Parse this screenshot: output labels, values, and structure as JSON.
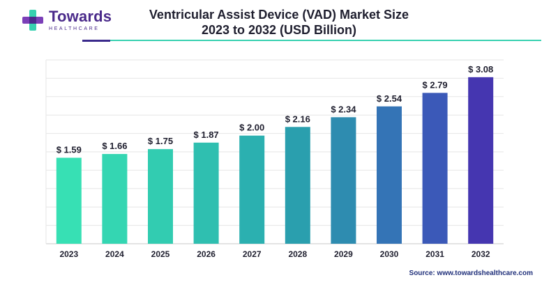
{
  "brand": {
    "name": "Towards",
    "tagline": "HEALTHCARE",
    "colors": {
      "purple": "#4a2a8c",
      "teal": "#37d1b0"
    }
  },
  "title_lines": [
    "Ventricular Assist Device (VAD) Market Size",
    "2023 to 2032 (USD Billion)"
  ],
  "source": "Source: www.towardshealthcare.com",
  "chart_data": {
    "type": "bar",
    "title": "Ventricular Assist Device (VAD) Market Size 2023 to 2032 (USD Billion)",
    "categories": [
      "2023",
      "2024",
      "2025",
      "2026",
      "2027",
      "2028",
      "2029",
      "2030",
      "2031",
      "2032"
    ],
    "values": [
      1.59,
      1.66,
      1.75,
      1.87,
      2.0,
      2.16,
      2.34,
      2.54,
      2.79,
      3.08
    ],
    "value_labels": [
      "$ 1.59",
      "$ 1.66",
      "$ 1.75",
      "$ 1.87",
      "$ 2.00",
      "$ 2.16",
      "$ 2.34",
      "$ 2.54",
      "$ 2.79",
      "$ 3.08"
    ],
    "unit": "USD Billion",
    "ylim": [
      0,
      3.4
    ],
    "grid": true,
    "legend": "none",
    "bar_colors": [
      "#37e0b4",
      "#34d6b2",
      "#32ccb1",
      "#2fbfb0",
      "#2bb0b0",
      "#2a9fae",
      "#2e8cb0",
      "#3474b6",
      "#3b59b8",
      "#4536b0"
    ]
  }
}
